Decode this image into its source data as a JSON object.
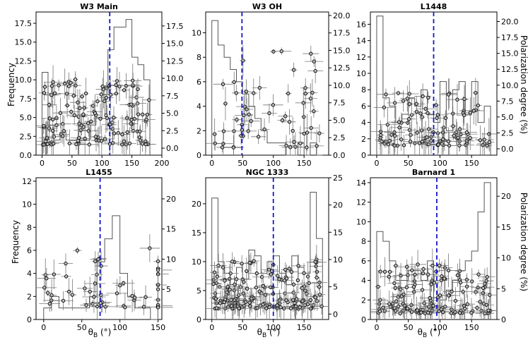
{
  "ylabel_left": "Frequency",
  "ylabel_right": "Polarization degree (%)",
  "xlabel": "θB (°)",
  "chart_data": [
    {
      "type": "histogram+scatter",
      "title": "W3 Main",
      "xlim": [
        -10,
        200
      ],
      "ylim_left": [
        0,
        19
      ],
      "ylim_right": [
        -1,
        19.5
      ],
      "xticks": [
        "0",
        "50",
        "100",
        "150",
        "200"
      ],
      "yticks_left": [
        "0.0",
        "2.5",
        "5.0",
        "7.5",
        "10.0",
        "12.5",
        "15.0",
        "17.5"
      ],
      "yticks_right": [
        "0.0",
        "2.5",
        "5.0",
        "7.5",
        "10.0",
        "12.5",
        "15.0",
        "17.5"
      ],
      "mean_theta": 113,
      "hist": {
        "edges": [
          0,
          10,
          20,
          30,
          40,
          50,
          60,
          70,
          80,
          90,
          100,
          110,
          120,
          130,
          140,
          150,
          160,
          170,
          180
        ],
        "counts": [
          11,
          4,
          2,
          3,
          2,
          2,
          2,
          2,
          4,
          5,
          8,
          14,
          17,
          17,
          18,
          13,
          12,
          10
        ]
      },
      "points_seed": 11,
      "n_points": 140,
      "pol_range": [
        0.5,
        10
      ]
    },
    {
      "type": "histogram+scatter",
      "title": "W3 OH",
      "xlim": [
        -10,
        190
      ],
      "ylim_left": [
        0,
        11.7
      ],
      "ylim_right": [
        0,
        20.5
      ],
      "xticks": [
        "0",
        "50",
        "100",
        "150"
      ],
      "yticks_left": [
        "0",
        "2",
        "4",
        "6",
        "8",
        "10"
      ],
      "yticks_right": [
        "0.0",
        "2.5",
        "5.0",
        "7.5",
        "10.0",
        "12.5",
        "15.0",
        "17.5",
        "20.0"
      ],
      "mean_theta": 49,
      "hist": {
        "edges": [
          0,
          10,
          20,
          30,
          40,
          50,
          60,
          70,
          80,
          90,
          100,
          110,
          120,
          130,
          140,
          150,
          160,
          170,
          180
        ],
        "counts": [
          11,
          9,
          8,
          7,
          6,
          5,
          4,
          3,
          2,
          1,
          1,
          1,
          0,
          0,
          1,
          0,
          1,
          0
        ]
      },
      "points_seed": 23,
      "n_points": 60,
      "pol_range": [
        1,
        16
      ]
    },
    {
      "type": "histogram+scatter",
      "title": "L1448",
      "xlim": [
        -10,
        190
      ],
      "ylim_left": [
        0,
        17.5
      ],
      "ylim_right": [
        -1,
        21.5
      ],
      "xticks": [
        "0",
        "50",
        "100",
        "150"
      ],
      "yticks_left": [
        "0",
        "2",
        "4",
        "6",
        "8",
        "10",
        "12",
        "14",
        "16"
      ],
      "yticks_right": [
        "0.0",
        "2.5",
        "5.0",
        "7.5",
        "10.0",
        "12.5",
        "15.0",
        "17.5",
        "20.0"
      ],
      "mean_theta": 90,
      "hist": {
        "edges": [
          0,
          10,
          20,
          30,
          40,
          50,
          60,
          70,
          80,
          90,
          100,
          110,
          120,
          130,
          140,
          150,
          160,
          170,
          180
        ],
        "counts": [
          17,
          7,
          6,
          4,
          5,
          7,
          6,
          8,
          5,
          4,
          9,
          3,
          8,
          9,
          5,
          9,
          4,
          6
        ]
      },
      "points_seed": 37,
      "n_points": 110,
      "pol_range": [
        0.5,
        9
      ]
    },
    {
      "type": "histogram+scatter",
      "title": "L1455",
      "xlim": [
        -10,
        155
      ],
      "ylim_left": [
        0,
        12.3
      ],
      "ylim_right": [
        0,
        23.5
      ],
      "xticks": [
        "0",
        "50",
        "100",
        "150"
      ],
      "yticks_left": [
        "0",
        "2",
        "4",
        "6",
        "8",
        "10",
        "12"
      ],
      "yticks_right": [
        "5",
        "10",
        "15",
        "20"
      ],
      "mean_theta": 74,
      "hist": {
        "edges": [
          0,
          10,
          20,
          30,
          40,
          50,
          60,
          70,
          80,
          90,
          100,
          110,
          120,
          130,
          140,
          150
        ],
        "counts": [
          1,
          2,
          1,
          1,
          1,
          1,
          2,
          5,
          7,
          9,
          4,
          2,
          1,
          1,
          0
        ]
      },
      "points_seed": 53,
      "n_points": 55,
      "pol_range": [
        2,
        12
      ]
    },
    {
      "type": "histogram+scatter",
      "title": "NGC 1333",
      "xlim": [
        -10,
        190
      ],
      "ylim_left": [
        0,
        24.5
      ],
      "ylim_right": [
        -1,
        25
      ],
      "xticks": [
        "0",
        "50",
        "100",
        "150"
      ],
      "yticks_left": [
        "0",
        "5",
        "10",
        "15",
        "20"
      ],
      "yticks_right": [
        "0",
        "5",
        "10",
        "15",
        "20",
        "25"
      ],
      "mean_theta": 100,
      "hist": {
        "edges": [
          0,
          10,
          20,
          30,
          40,
          50,
          60,
          70,
          80,
          90,
          100,
          110,
          120,
          130,
          140,
          150,
          160,
          170,
          180
        ],
        "counts": [
          21,
          10,
          8,
          6,
          9,
          7,
          12,
          11,
          8,
          10,
          11,
          8,
          6,
          11,
          9,
          8,
          22,
          14
        ]
      },
      "points_seed": 71,
      "n_points": 170,
      "pol_range": [
        1,
        10
      ]
    },
    {
      "type": "histogram+scatter",
      "title": "Barnard 1",
      "xlim": [
        -10,
        190
      ],
      "ylim_left": [
        0,
        14.5
      ],
      "ylim_right": [
        0,
        23
      ],
      "xticks": [
        "0",
        "50",
        "100",
        "150"
      ],
      "yticks_left": [
        "0",
        "2",
        "4",
        "6",
        "8",
        "10",
        "12",
        "14"
      ],
      "yticks_right": [
        "0",
        "5",
        "10",
        "15",
        "20"
      ],
      "mean_theta": 95,
      "hist": {
        "edges": [
          0,
          10,
          20,
          30,
          40,
          50,
          60,
          70,
          80,
          90,
          100,
          110,
          120,
          130,
          140,
          150,
          160,
          170,
          180
        ],
        "counts": [
          9,
          8,
          6,
          4,
          4,
          5,
          5,
          4,
          6,
          1,
          2,
          3,
          4,
          5,
          6,
          7,
          11,
          14
        ]
      },
      "points_seed": 97,
      "n_points": 140,
      "pol_range": [
        1,
        9
      ]
    }
  ]
}
